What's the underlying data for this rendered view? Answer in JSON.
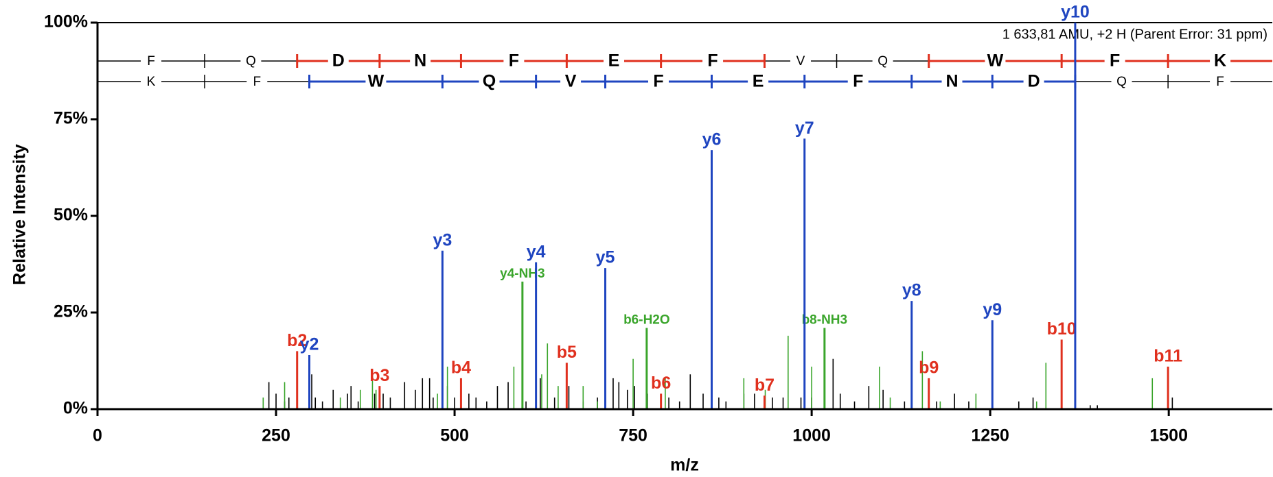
{
  "chart_data": {
    "type": "spectrum",
    "x_label": "m/z",
    "y_label": "Relative Intensity",
    "annotation": "1 633,81 AMU, +2 H (Parent Error: 31 ppm)",
    "xlim": [
      0,
      1645
    ],
    "ylim": [
      0,
      100
    ],
    "xticks": [
      0,
      250,
      500,
      750,
      1000,
      1250,
      1500
    ],
    "yticks": [
      {
        "value": 0,
        "label": "0%"
      },
      {
        "value": 25,
        "label": "25%"
      },
      {
        "value": 50,
        "label": "50%"
      },
      {
        "value": 75,
        "label": "75%"
      },
      {
        "value": 100,
        "label": "100%"
      }
    ],
    "sequence_rows": [
      {
        "color": "#e0301e",
        "residues": [
          "F",
          "Q",
          "D",
          "N",
          "F",
          "E",
          "F",
          "V",
          "Q",
          "W",
          "F",
          "K"
        ],
        "highlight": [
          false,
          false,
          true,
          true,
          true,
          true,
          true,
          false,
          false,
          true,
          true,
          true
        ],
        "breaks": [
          150,
          279.5,
          395,
          509,
          657,
          789,
          934,
          1035,
          1164,
          1350,
          1499
        ]
      },
      {
        "color": "#1f45c0",
        "residues": [
          "K",
          "F",
          "W",
          "Q",
          "V",
          "F",
          "E",
          "F",
          "N",
          "D",
          "Q",
          "F"
        ],
        "highlight": [
          false,
          false,
          true,
          true,
          true,
          true,
          true,
          true,
          true,
          true,
          false,
          false
        ],
        "breaks": [
          150,
          296.6,
          483,
          614,
          711,
          860,
          990,
          1140,
          1253,
          1369,
          1499
        ]
      }
    ],
    "series": [
      {
        "color": "#000000",
        "x": [
          240,
          250,
          262,
          268,
          300,
          305,
          315,
          330,
          350,
          355,
          365,
          388,
          400,
          410,
          430,
          445,
          455,
          465,
          470,
          490,
          500,
          520,
          530,
          545,
          560,
          575,
          600,
          620,
          640,
          660,
          680,
          700,
          722,
          730,
          742,
          752,
          770,
          800,
          815,
          830,
          848,
          870,
          880,
          905,
          920,
          945,
          960,
          985,
          1000,
          1030,
          1040,
          1060,
          1080,
          1100,
          1130,
          1175,
          1200,
          1220,
          1290,
          1310,
          1390,
          1400,
          1505
        ],
        "values": [
          7,
          4,
          2,
          3,
          9,
          3,
          2,
          5,
          4,
          6,
          2,
          4,
          4,
          3,
          7,
          5,
          8,
          8,
          3,
          6,
          3,
          4,
          3,
          2,
          6,
          7,
          2,
          8,
          3,
          6,
          2,
          3,
          8,
          7,
          5,
          6,
          4,
          3,
          2,
          9,
          4,
          3,
          2,
          4,
          4,
          3,
          3,
          3,
          3,
          13,
          4,
          2,
          6,
          5,
          2,
          2,
          4,
          2,
          2,
          3,
          1,
          1,
          3
        ]
      },
      {
        "color": "#3aa52b",
        "x": [
          232,
          262,
          340,
          368,
          385,
          390,
          476,
          490,
          583,
          622,
          630,
          645,
          680,
          700,
          750,
          795,
          905,
          935,
          967,
          1000,
          1095,
          1110,
          1155,
          1180,
          1230,
          1315,
          1328,
          1477
        ],
        "values": [
          3,
          7,
          3,
          5,
          10,
          5,
          4,
          11,
          11,
          9,
          17,
          6,
          6,
          2,
          13,
          8,
          8,
          5,
          19,
          11,
          11,
          3,
          15,
          2,
          4,
          2,
          12,
          8
        ]
      },
      {
        "color": "#3aa52b",
        "x": [
          595,
          769,
          1018
        ],
        "values": [
          33,
          21,
          21
        ],
        "labels": [
          "y4-NH3",
          "b6-H2O",
          "b8-NH3"
        ]
      },
      {
        "color": "#e0301e",
        "x": [
          279.5,
          395,
          509,
          657,
          789,
          934,
          1164,
          1350,
          1499
        ],
        "values": [
          15,
          6,
          8,
          12,
          4,
          3.5,
          8,
          18,
          11
        ],
        "labels": [
          "b2",
          "b3",
          "b4",
          "b5",
          "b6",
          "b7",
          "b9",
          "b10",
          "b11"
        ]
      },
      {
        "color": "#1f45c0",
        "x": [
          296.6,
          483,
          614,
          711,
          860,
          990,
          1140,
          1253,
          1369
        ],
        "values": [
          14,
          41,
          38,
          36.5,
          67,
          70,
          28,
          23,
          100
        ],
        "labels": [
          "y2",
          "y3",
          "y4",
          "y5",
          "y6",
          "y7",
          "y8",
          "y9",
          "y10"
        ]
      }
    ]
  }
}
